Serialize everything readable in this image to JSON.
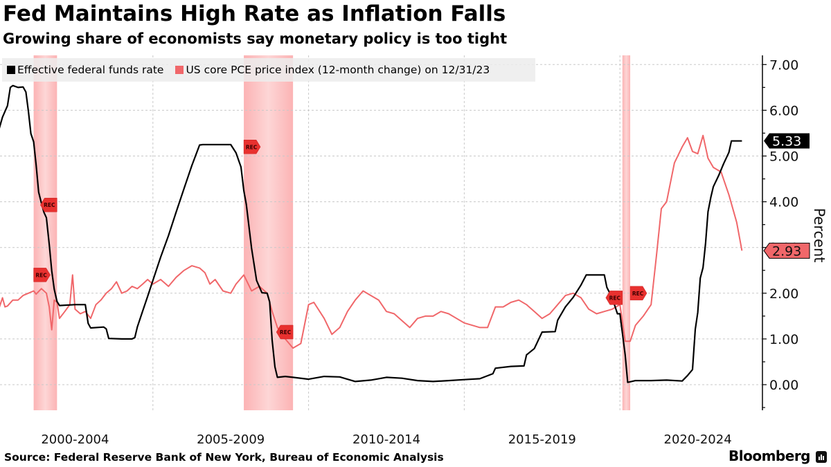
{
  "header": {
    "title": "Fed Maintains High Rate as Inflation Falls",
    "subtitle": "Growing share of economists say monetary policy is too tight"
  },
  "legend": {
    "items": [
      {
        "label": "Effective federal funds rate",
        "color": "#000000"
      },
      {
        "label": "US core PCE price index (12-month change) on 12/31/23",
        "color": "#f0676a"
      }
    ]
  },
  "footer": {
    "source": "Source: Federal Reserve Bank of New York, Bureau of Economic Analysis",
    "brand": "Bloomberg",
    "brand_icon": "bloomberg-terminal-icon"
  },
  "chart_data": {
    "type": "line",
    "title": "Fed Maintains High Rate as Inflation Falls",
    "subtitle": "Growing share of economists say monetary policy is too tight",
    "xlabel": "",
    "ylabel": "Percent",
    "ylim": [
      -0.56,
      7.2
    ],
    "xlim": [
      2000.0,
      2025.0
    ],
    "yticks": [
      0,
      1,
      2,
      3,
      4,
      5,
      6,
      7
    ],
    "ytick_labels": [
      "0.00",
      "1.00",
      "2.00",
      "3.00",
      "4.00",
      "5.00",
      "6.00",
      "7.00"
    ],
    "xtick_labels": [
      {
        "label": "2000-2004",
        "center": 2002.5
      },
      {
        "label": "2005-2009",
        "center": 2007.5
      },
      {
        "label": "2010-2014",
        "center": 2012.5
      },
      {
        "label": "2015-2019",
        "center": 2017.5
      },
      {
        "label": "2020-2024",
        "center": 2022.5
      }
    ],
    "xgrid": [
      2005,
      2010,
      2015,
      2020
    ],
    "grid": true,
    "legend_position": "top-left",
    "axis_side": "right",
    "recessions": [
      {
        "start": 2001.17,
        "end": 2001.92,
        "label": "REC"
      },
      {
        "start": 2007.92,
        "end": 2009.5,
        "label": "REC"
      },
      {
        "start": 2020.08,
        "end": 2020.33,
        "label": "REC"
      }
    ],
    "series": [
      {
        "name": "Effective federal funds rate",
        "color": "#000000",
        "last_value_label": "5.33",
        "x": [
          2000.0,
          2000.17,
          2000.33,
          2000.42,
          2000.5,
          2000.67,
          2000.83,
          2000.92,
          2001.0,
          2001.08,
          2001.17,
          2001.25,
          2001.33,
          2001.42,
          2001.5,
          2001.58,
          2001.67,
          2001.75,
          2001.83,
          2001.92,
          2002.0,
          2002.5,
          2002.83,
          2002.92,
          2003.0,
          2003.42,
          2003.5,
          2003.58,
          2004.0,
          2004.33,
          2004.42,
          2004.5,
          2004.67,
          2004.83,
          2005.0,
          2005.25,
          2005.5,
          2005.75,
          2006.0,
          2006.25,
          2006.5,
          2006.6,
          2007.0,
          2007.5,
          2007.67,
          2007.83,
          2007.92,
          2008.0,
          2008.17,
          2008.33,
          2008.5,
          2008.67,
          2008.75,
          2008.83,
          2008.92,
          2009.0,
          2009.25,
          2009.5,
          2010.0,
          2010.5,
          2011.0,
          2011.5,
          2012.0,
          2012.5,
          2013.0,
          2013.5,
          2014.0,
          2014.5,
          2015.0,
          2015.5,
          2015.92,
          2016.0,
          2016.5,
          2016.92,
          2017.0,
          2017.25,
          2017.5,
          2017.92,
          2018.0,
          2018.25,
          2018.5,
          2018.75,
          2018.92,
          2019.0,
          2019.5,
          2019.58,
          2019.75,
          2019.92,
          2020.0,
          2020.17,
          2020.25,
          2020.5,
          2021.0,
          2021.5,
          2022.0,
          2022.17,
          2022.33,
          2022.42,
          2022.5,
          2022.58,
          2022.67,
          2022.75,
          2022.83,
          2022.92,
          2023.0,
          2023.17,
          2023.33,
          2023.5,
          2023.58,
          2023.92
        ],
        "values": [
          5.45,
          5.85,
          6.1,
          6.5,
          6.54,
          6.5,
          6.51,
          6.4,
          5.98,
          5.49,
          5.31,
          4.8,
          4.21,
          3.97,
          3.77,
          3.65,
          3.07,
          2.49,
          2.09,
          1.82,
          1.73,
          1.75,
          1.75,
          1.34,
          1.24,
          1.26,
          1.22,
          1.01,
          1.0,
          1.0,
          1.03,
          1.26,
          1.61,
          1.93,
          2.28,
          2.79,
          3.26,
          3.78,
          4.29,
          4.79,
          5.24,
          5.25,
          5.25,
          5.25,
          5.07,
          4.76,
          4.24,
          3.94,
          2.98,
          2.28,
          2.01,
          2.0,
          1.81,
          0.97,
          0.39,
          0.16,
          0.18,
          0.16,
          0.12,
          0.18,
          0.17,
          0.07,
          0.1,
          0.16,
          0.14,
          0.09,
          0.07,
          0.09,
          0.11,
          0.13,
          0.24,
          0.36,
          0.4,
          0.41,
          0.65,
          0.79,
          1.15,
          1.16,
          1.41,
          1.7,
          1.91,
          2.18,
          2.4,
          2.4,
          2.4,
          2.13,
          1.9,
          1.55,
          1.55,
          0.65,
          0.05,
          0.09,
          0.09,
          0.1,
          0.08,
          0.2,
          0.33,
          1.21,
          1.58,
          2.33,
          2.56,
          3.08,
          3.78,
          4.1,
          4.33,
          4.57,
          4.83,
          5.08,
          5.33,
          5.33
        ]
      },
      {
        "name": "US core PCE price index (12-month change)",
        "color": "#f0676a",
        "last_value_label": "2.93",
        "x": [
          2000.0,
          2000.17,
          2000.25,
          2000.33,
          2000.5,
          2000.67,
          2000.83,
          2001.0,
          2001.17,
          2001.25,
          2001.42,
          2001.58,
          2001.67,
          2001.75,
          2001.83,
          2001.92,
          2002.0,
          2002.17,
          2002.33,
          2002.42,
          2002.5,
          2002.67,
          2002.83,
          2003.0,
          2003.17,
          2003.33,
          2003.5,
          2003.67,
          2003.83,
          2004.0,
          2004.17,
          2004.33,
          2004.5,
          2004.67,
          2004.83,
          2005.0,
          2005.25,
          2005.5,
          2005.75,
          2006.0,
          2006.25,
          2006.5,
          2006.67,
          2006.83,
          2007.0,
          2007.25,
          2007.5,
          2007.67,
          2007.92,
          2008.17,
          2008.42,
          2008.67,
          2008.83,
          2009.0,
          2009.25,
          2009.5,
          2009.75,
          2010.0,
          2010.17,
          2010.5,
          2010.75,
          2011.0,
          2011.25,
          2011.5,
          2011.75,
          2012.0,
          2012.25,
          2012.5,
          2012.75,
          2013.0,
          2013.25,
          2013.5,
          2013.75,
          2014.0,
          2014.25,
          2014.5,
          2014.75,
          2015.0,
          2015.25,
          2015.5,
          2015.75,
          2016.0,
          2016.25,
          2016.5,
          2016.75,
          2017.0,
          2017.25,
          2017.5,
          2017.75,
          2018.0,
          2018.25,
          2018.5,
          2018.75,
          2019.0,
          2019.25,
          2019.5,
          2019.75,
          2020.0,
          2020.17,
          2020.33,
          2020.5,
          2020.75,
          2021.0,
          2021.17,
          2021.33,
          2021.5,
          2021.75,
          2022.0,
          2022.17,
          2022.33,
          2022.5,
          2022.67,
          2022.83,
          2023.0,
          2023.25,
          2023.5,
          2023.75,
          2023.92
        ],
        "values": [
          1.55,
          1.9,
          1.7,
          1.72,
          1.85,
          1.85,
          1.95,
          2.0,
          2.05,
          1.98,
          2.1,
          2.0,
          1.7,
          1.2,
          1.85,
          1.8,
          1.45,
          1.6,
          1.75,
          2.4,
          1.65,
          1.55,
          1.6,
          1.45,
          1.75,
          1.85,
          2.0,
          2.1,
          2.25,
          2.0,
          2.05,
          2.15,
          2.1,
          2.2,
          2.3,
          2.2,
          2.3,
          2.15,
          2.35,
          2.5,
          2.6,
          2.55,
          2.45,
          2.2,
          2.3,
          2.05,
          2.0,
          2.2,
          2.4,
          2.05,
          2.15,
          2.0,
          1.6,
          1.25,
          1.0,
          0.8,
          0.9,
          1.75,
          1.8,
          1.45,
          1.1,
          1.25,
          1.6,
          1.85,
          2.05,
          1.95,
          1.85,
          1.6,
          1.55,
          1.4,
          1.25,
          1.45,
          1.5,
          1.5,
          1.6,
          1.55,
          1.45,
          1.35,
          1.3,
          1.25,
          1.25,
          1.7,
          1.7,
          1.8,
          1.85,
          1.75,
          1.6,
          1.45,
          1.55,
          1.75,
          1.95,
          2.0,
          1.9,
          1.65,
          1.55,
          1.6,
          1.65,
          1.75,
          0.95,
          0.95,
          1.3,
          1.5,
          1.75,
          2.8,
          3.85,
          4.0,
          4.85,
          5.2,
          5.4,
          5.1,
          5.05,
          5.45,
          4.95,
          4.75,
          4.65,
          4.15,
          3.55,
          2.93
        ]
      }
    ]
  }
}
